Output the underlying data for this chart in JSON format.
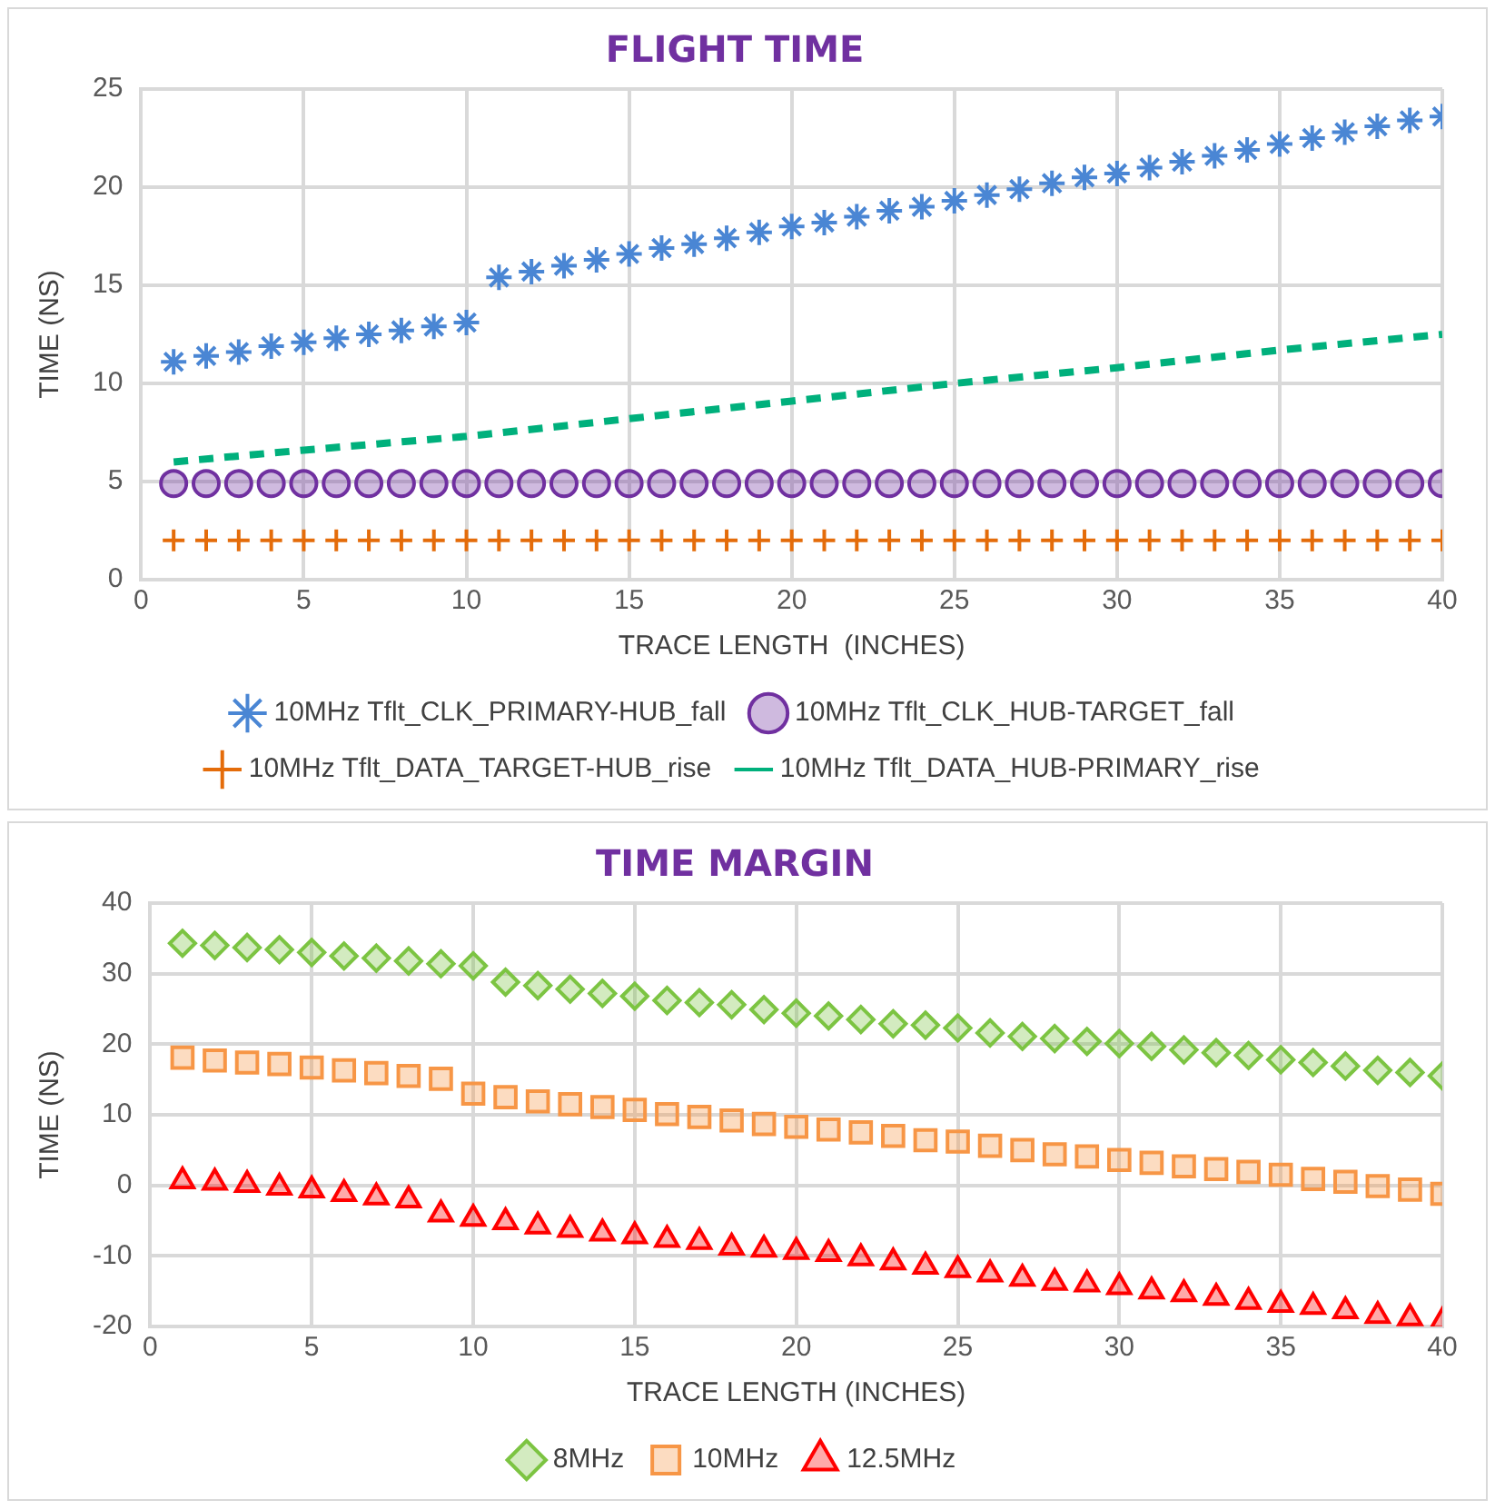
{
  "chart_data": [
    {
      "type": "scatter",
      "title": "FLIGHT TIME",
      "xlabel": "TRACE LENGTH  (INCHES)",
      "ylabel": "TIME (NS)",
      "xlim": [
        0,
        40
      ],
      "xticks": [
        0,
        5,
        10,
        15,
        20,
        25,
        30,
        35,
        40
      ],
      "ylim": [
        0,
        25
      ],
      "yticks": [
        0,
        5,
        10,
        15,
        20,
        25
      ],
      "grid": true,
      "legend": "bottom",
      "x": [
        1,
        2,
        3,
        4,
        5,
        6,
        7,
        8,
        9,
        10,
        11,
        12,
        13,
        14,
        15,
        16,
        17,
        18,
        19,
        20,
        21,
        22,
        23,
        24,
        25,
        26,
        27,
        28,
        29,
        30,
        31,
        32,
        33,
        34,
        35,
        36,
        37,
        38,
        39,
        40
      ],
      "series": [
        {
          "name": "10MHz Tflt_CLK_PRIMARY-HUB_fall",
          "color": "#4a86d4",
          "values": [
            11.1,
            11.4,
            11.6,
            11.9,
            12.1,
            12.3,
            12.5,
            12.7,
            12.9,
            13.1,
            15.4,
            15.7,
            16.0,
            16.3,
            16.6,
            16.9,
            17.1,
            17.4,
            17.7,
            18.0,
            18.2,
            18.5,
            18.8,
            19.0,
            19.3,
            19.6,
            19.9,
            20.2,
            20.5,
            20.7,
            21.0,
            21.3,
            21.6,
            21.9,
            22.2,
            22.5,
            22.8,
            23.1,
            23.4,
            23.6
          ]
        },
        {
          "name": "10MHz Tflt_CLK_HUB-TARGET_fall",
          "color": "#7030a0",
          "marker": "circle",
          "values": [
            4.9,
            4.9,
            4.9,
            4.9,
            4.9,
            4.9,
            4.9,
            4.9,
            4.9,
            4.9,
            4.9,
            4.9,
            4.9,
            4.9,
            4.9,
            4.9,
            4.9,
            4.9,
            4.9,
            4.9,
            4.9,
            4.9,
            4.9,
            4.9,
            4.9,
            4.9,
            4.9,
            4.9,
            4.9,
            4.9,
            4.9,
            4.9,
            4.9,
            4.9,
            4.9,
            4.9,
            4.9,
            4.9,
            4.9,
            4.9
          ]
        },
        {
          "name": "10MHz Tflt_DATA_TARGET-HUB_rise",
          "color": "#e46c0a",
          "marker": "cross",
          "values": [
            2.0,
            2.0,
            2.0,
            2.0,
            2.0,
            2.0,
            2.0,
            2.0,
            2.0,
            2.0,
            2.0,
            2.0,
            2.0,
            2.0,
            2.0,
            2.0,
            2.0,
            2.0,
            2.0,
            2.0,
            2.0,
            2.0,
            2.0,
            2.0,
            2.0,
            2.0,
            2.0,
            2.0,
            2.0,
            2.0,
            2.0,
            2.0,
            2.0,
            2.0,
            2.0,
            2.0,
            2.0,
            2.0,
            2.0,
            2.0
          ]
        },
        {
          "name": "10MHz Tflt_DATA_HUB-PRIMARY_rise",
          "type": "line",
          "color": "#00b07c",
          "marker": "none",
          "line_style": "dashed",
          "x": [
            1,
            5,
            10,
            15,
            20,
            25,
            30,
            35,
            40
          ],
          "values": [
            6.0,
            6.6,
            7.3,
            8.2,
            9.1,
            10.0,
            10.8,
            11.7,
            12.5
          ]
        }
      ]
    },
    {
      "type": "scatter",
      "title": "TIME MARGIN",
      "xlabel": "TRACE LENGTH (INCHES)",
      "ylabel": "TIME (NS)",
      "xlim": [
        0,
        40
      ],
      "xticks": [
        0,
        5,
        10,
        15,
        20,
        25,
        30,
        35,
        40
      ],
      "ylim": [
        -20,
        40
      ],
      "yticks": [
        -20,
        -10,
        0,
        10,
        20,
        30,
        40
      ],
      "grid": true,
      "legend": "bottom",
      "x": [
        1,
        2,
        3,
        4,
        5,
        6,
        7,
        8,
        9,
        10,
        11,
        12,
        13,
        14,
        15,
        16,
        17,
        18,
        19,
        20,
        21,
        22,
        23,
        24,
        25,
        26,
        27,
        28,
        29,
        30,
        31,
        32,
        33,
        34,
        35,
        36,
        37,
        38,
        39,
        40
      ],
      "series": [
        {
          "name": "8MHz",
          "color": "#7cc442",
          "marker": "diamond",
          "values": [
            34.3,
            34.0,
            33.7,
            33.4,
            33.0,
            32.5,
            32.2,
            31.8,
            31.4,
            31.1,
            28.8,
            28.3,
            27.8,
            27.2,
            26.8,
            26.2,
            25.9,
            25.6,
            24.9,
            24.4,
            24.0,
            23.5,
            22.9,
            22.7,
            22.3,
            21.6,
            21.1,
            20.8,
            20.4,
            20.1,
            19.7,
            19.2,
            18.8,
            18.4,
            17.8,
            17.4,
            16.9,
            16.3,
            16.0,
            15.5
          ]
        },
        {
          "name": "10MHz",
          "color": "#f79646",
          "marker": "square",
          "values": [
            18.1,
            17.7,
            17.4,
            17.2,
            16.7,
            16.3,
            15.9,
            15.5,
            15.1,
            13.0,
            12.5,
            11.9,
            11.5,
            11.1,
            10.7,
            10.1,
            9.7,
            9.2,
            8.7,
            8.3,
            7.9,
            7.5,
            7.0,
            6.4,
            6.2,
            5.6,
            5.0,
            4.4,
            4.1,
            3.6,
            3.2,
            2.7,
            2.3,
            1.9,
            1.5,
            0.9,
            0.5,
            -0.1,
            -0.6,
            -1.2
          ]
        },
        {
          "name": "12.5MHz",
          "color": "#ff0000",
          "marker": "triangle",
          "values": [
            0.6,
            0.4,
            0.1,
            -0.3,
            -0.7,
            -1.2,
            -1.7,
            -2.1,
            -4.1,
            -4.7,
            -5.2,
            -5.8,
            -6.3,
            -6.8,
            -7.2,
            -7.7,
            -8.0,
            -8.8,
            -9.1,
            -9.4,
            -9.7,
            -10.3,
            -10.9,
            -11.5,
            -12.0,
            -12.6,
            -13.2,
            -13.8,
            -14.0,
            -14.4,
            -15.0,
            -15.4,
            -15.9,
            -16.5,
            -16.9,
            -17.2,
            -17.8,
            -18.5,
            -18.8,
            -19.3
          ]
        }
      ]
    }
  ]
}
